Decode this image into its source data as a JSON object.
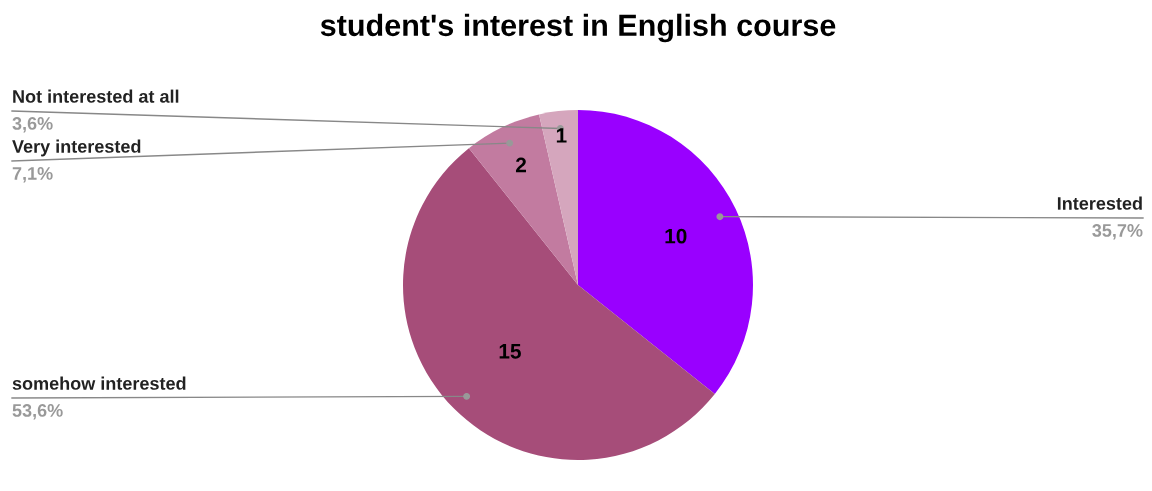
{
  "chart_data": {
    "type": "pie",
    "title": "student's interest in English course",
    "categories": [
      "Interested",
      "somehow interested",
      "Very interested",
      "Not interested at all"
    ],
    "values": [
      10,
      15,
      2,
      1
    ],
    "colors": [
      "#9900ff",
      "#a64d79",
      "#c27ba0",
      "#d5a6bd"
    ],
    "annotations": [
      "35,7%",
      "53,6%",
      "7,1%",
      "3,6%"
    ],
    "data_labels": true
  }
}
